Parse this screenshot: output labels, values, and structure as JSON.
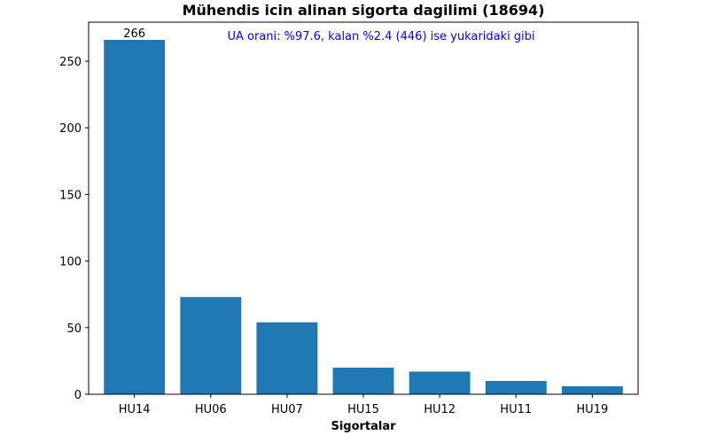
{
  "chart_data": {
    "type": "bar",
    "title": "Mühendis icin alinan sigorta dagilimi (18694)",
    "xlabel": "Sigortalar",
    "ylabel": "",
    "categories": [
      "HU14",
      "HU06",
      "HU07",
      "HU15",
      "HU12",
      "HU11",
      "HU19"
    ],
    "values": [
      266,
      73,
      54,
      20,
      17,
      10,
      6
    ],
    "ylim": [
      0,
      279.3
    ],
    "yticks": [
      0,
      50,
      100,
      150,
      200,
      250
    ],
    "data_labels": [
      {
        "category": "HU14",
        "text": "266"
      }
    ],
    "annotation": "UA orani: %97.6, kalan %2.4 (446) ise yukaridaki gibi",
    "annotation_color": "#0000ff",
    "bar_color": "#1f77b4",
    "grid": false,
    "legend": "none"
  }
}
